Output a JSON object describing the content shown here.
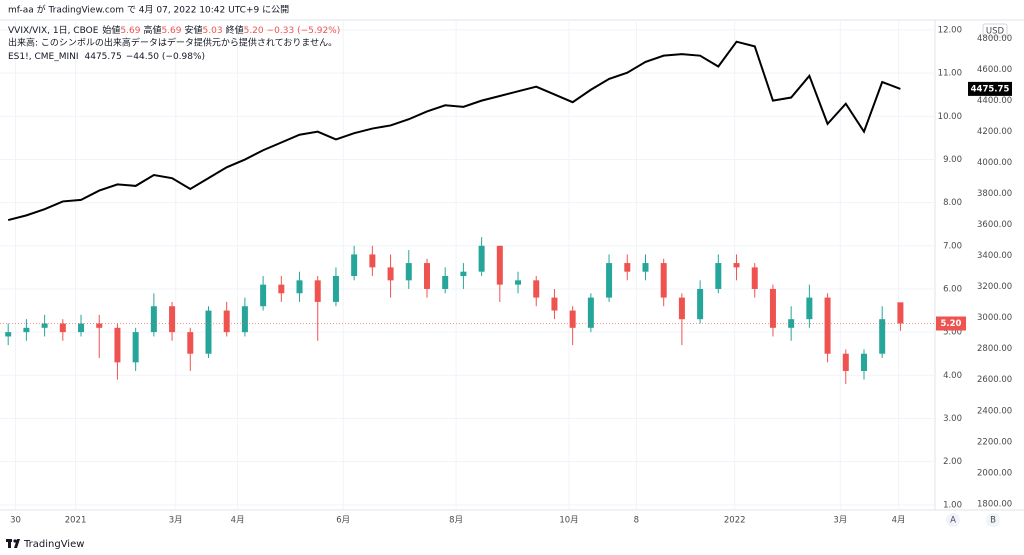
{
  "header": "mf-aa が TradingView.com で 4月 07, 2022 10:42 UTC+9 に公開",
  "footer": "TradingView",
  "chart_data": {
    "type": "candlestick",
    "legend": {
      "open_label": "始値",
      "high_label": "高値",
      "low_label": "安値",
      "close_label": "終値",
      "change": "−0.33 (−5.92%)",
      "volume_note": "出来高: このシンボルの出来高データはデータ提供元から提供されておりません。",
      "line_change": "−44.50 (−0.98%)"
    },
    "last_label": "5.20",
    "currency": "USD",
    "ylim": [
      0.88,
      12.23
    ],
    "yticks": [
      {
        "value": 12,
        "label": "12.00"
      },
      {
        "value": 11,
        "label": "11.00"
      },
      {
        "value": 10,
        "label": "10.00"
      },
      {
        "value": 9,
        "label": "9.00"
      },
      {
        "value": 8,
        "label": "8.00"
      },
      {
        "value": 7,
        "label": "7.00"
      },
      {
        "value": 6,
        "label": "6.00"
      },
      {
        "value": 5,
        "label": "5.00"
      },
      {
        "value": 4,
        "label": "4.00"
      },
      {
        "value": 3,
        "label": "3.00"
      },
      {
        "value": 2,
        "label": "2.00"
      },
      {
        "value": 1,
        "label": "1.00"
      }
    ],
    "y2lim": [
      1760,
      4920
    ],
    "y2ticks": [
      {
        "value": 4800,
        "label": "4800.00"
      },
      {
        "value": 4600,
        "label": "4600.00"
      },
      {
        "value": 4400,
        "label": "4400.00"
      },
      {
        "value": 4200,
        "label": "4200.00"
      },
      {
        "value": 4000,
        "label": "4000.00"
      },
      {
        "value": 3800,
        "label": "3800.00"
      },
      {
        "value": 3600,
        "label": "3600.00"
      },
      {
        "value": 3400,
        "label": "3400.00"
      },
      {
        "value": 3200,
        "label": "3200.00"
      },
      {
        "value": 3000,
        "label": "3000.00"
      },
      {
        "value": 2800,
        "label": "2800.00"
      },
      {
        "value": 2600,
        "label": "2600.00"
      },
      {
        "value": 2400,
        "label": "2400.00"
      },
      {
        "value": 2200,
        "label": "2200.00"
      },
      {
        "value": 2000,
        "label": "2000.00"
      },
      {
        "value": 1800,
        "label": "1800.00"
      }
    ],
    "xlim": [
      -0.45,
      50.9
    ],
    "xticks": [
      {
        "value": 0.4,
        "label": "30"
      },
      {
        "value": 3.7,
        "label": "2021"
      },
      {
        "value": 9.2,
        "label": "3月"
      },
      {
        "value": 12.6,
        "label": "4月"
      },
      {
        "value": 18.4,
        "label": "6月"
      },
      {
        "value": 24.6,
        "label": "8月"
      },
      {
        "value": 30.8,
        "label": "10月"
      },
      {
        "value": 34.5,
        "label": "8"
      },
      {
        "value": 39.9,
        "label": "2022"
      },
      {
        "value": 45.7,
        "label": "3月"
      },
      {
        "value": 48.9,
        "label": "4月"
      }
    ],
    "grid": true,
    "series": [
      {
        "name": "VVIX/VIX, 1日, CBOE",
        "type": "candlestick",
        "up_color": "#26a69a",
        "down_color": "#ef5350",
        "open": [
          4.9,
          5.0,
          5.1,
          5.2,
          5.0,
          5.2,
          5.1,
          4.3,
          5.0,
          5.6,
          5.0,
          4.5,
          5.5,
          5.0,
          5.6,
          6.1,
          5.9,
          6.2,
          5.7,
          6.3,
          6.8,
          6.5,
          6.2,
          6.6,
          6.0,
          6.3,
          6.4,
          7.0,
          6.1,
          6.2,
          5.8,
          5.5,
          5.1,
          5.8,
          6.6,
          6.4,
          6.6,
          5.8,
          5.3,
          6.0,
          6.6,
          6.5,
          6.0,
          5.1,
          5.3,
          5.8,
          4.5,
          4.1,
          4.5,
          5.69
        ],
        "high": [
          5.2,
          5.3,
          5.4,
          5.3,
          5.4,
          5.4,
          5.2,
          5.1,
          5.9,
          5.7,
          5.1,
          5.6,
          5.7,
          5.8,
          6.3,
          6.3,
          6.4,
          6.3,
          6.5,
          7.0,
          7.0,
          6.8,
          6.9,
          6.7,
          6.5,
          6.6,
          7.2,
          7.0,
          6.4,
          6.3,
          6.0,
          5.6,
          5.9,
          6.8,
          6.8,
          6.8,
          6.7,
          5.9,
          6.2,
          6.8,
          6.8,
          6.6,
          6.1,
          5.6,
          6.1,
          5.9,
          4.6,
          4.6,
          5.6,
          5.69
        ],
        "low": [
          4.7,
          4.8,
          4.9,
          4.8,
          4.9,
          4.4,
          3.9,
          4.1,
          4.9,
          4.8,
          4.1,
          4.4,
          4.9,
          4.9,
          5.5,
          5.7,
          5.7,
          4.8,
          5.6,
          6.2,
          6.3,
          5.8,
          6.0,
          5.8,
          5.9,
          6.0,
          6.3,
          5.7,
          5.9,
          5.6,
          5.3,
          4.7,
          5.0,
          5.7,
          6.2,
          6.2,
          5.6,
          4.7,
          5.2,
          5.9,
          6.2,
          5.8,
          4.9,
          4.8,
          5.1,
          4.3,
          3.8,
          3.9,
          4.4,
          5.03
        ],
        "close": [
          5.0,
          5.1,
          5.2,
          5.0,
          5.2,
          5.1,
          4.3,
          5.0,
          5.6,
          5.0,
          4.5,
          5.5,
          5.0,
          5.6,
          6.1,
          5.9,
          6.2,
          5.7,
          6.3,
          6.8,
          6.5,
          6.2,
          6.6,
          6.0,
          6.3,
          6.4,
          7.0,
          6.1,
          6.2,
          5.8,
          5.5,
          5.1,
          5.8,
          6.6,
          6.4,
          6.6,
          5.8,
          5.3,
          6.0,
          6.6,
          6.5,
          6.0,
          5.1,
          5.3,
          5.8,
          4.5,
          4.1,
          4.5,
          5.3,
          5.2
        ]
      },
      {
        "name": "ES1!, CME_MINI",
        "type": "line",
        "axis": "y2",
        "color": "#000000",
        "values": [
          3630,
          3660,
          3700,
          3750,
          3760,
          3820,
          3860,
          3850,
          3920,
          3900,
          3830,
          3900,
          3970,
          4020,
          4080,
          4130,
          4180,
          4200,
          4150,
          4190,
          4220,
          4240,
          4280,
          4330,
          4370,
          4360,
          4400,
          4430,
          4460,
          4490,
          4440,
          4390,
          4470,
          4540,
          4580,
          4650,
          4690,
          4700,
          4690,
          4620,
          4780,
          4750,
          4400,
          4420,
          4560,
          4250,
          4380,
          4200,
          4520,
          4475.75
        ]
      }
    ]
  }
}
